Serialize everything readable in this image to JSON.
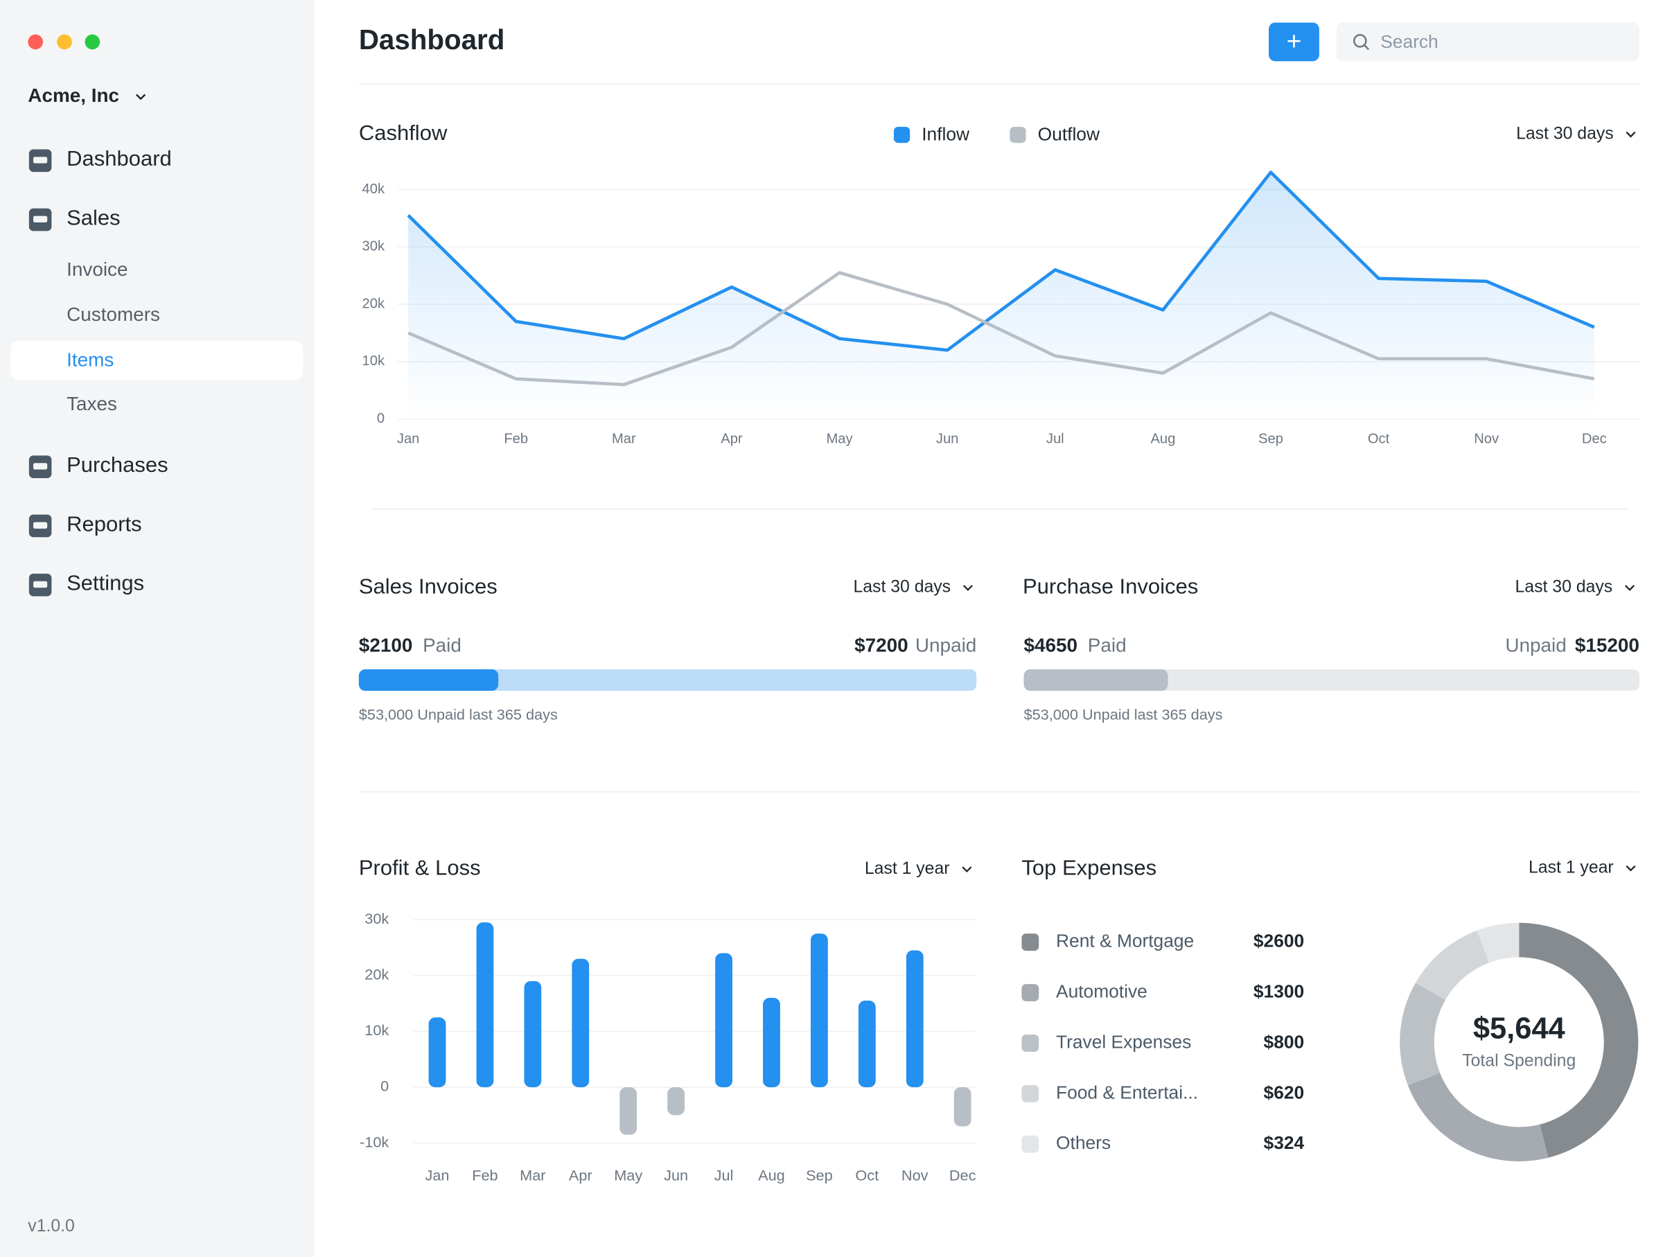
{
  "sidebar": {
    "company": "Acme, Inc",
    "nav": [
      {
        "label": "Dashboard"
      },
      {
        "label": "Sales",
        "children": [
          {
            "label": "Invoice"
          },
          {
            "label": "Customers"
          },
          {
            "label": "Items",
            "active": true
          },
          {
            "label": "Taxes"
          }
        ]
      },
      {
        "label": "Purchases"
      },
      {
        "label": "Reports"
      },
      {
        "label": "Settings"
      }
    ],
    "version": "v1.0.0"
  },
  "header": {
    "title": "Dashboard",
    "add_button": "+",
    "search_placeholder": "Search"
  },
  "cashflow": {
    "type": "line",
    "title": "Cashflow",
    "period": "Last 30 days",
    "categories": [
      "Jan",
      "Feb",
      "Mar",
      "Apr",
      "May",
      "Jun",
      "Jul",
      "Aug",
      "Sep",
      "Oct",
      "Nov",
      "Dec"
    ],
    "series": [
      {
        "name": "Inflow",
        "color": "#2490ef",
        "values": [
          35500,
          17000,
          14000,
          23000,
          14000,
          12000,
          26000,
          19000,
          43000,
          24500,
          24000,
          16000
        ]
      },
      {
        "name": "Outflow",
        "color": "#b7bec5",
        "values": [
          15000,
          7000,
          6000,
          12500,
          25500,
          20000,
          11000,
          8000,
          18500,
          10500,
          10500,
          7000
        ]
      }
    ],
    "ylim": [
      0,
      44000
    ],
    "yticks": [
      0,
      {
        "value": 10000,
        "label": "10k"
      },
      {
        "value": 20000,
        "label": "20k"
      },
      {
        "value": 30000,
        "label": "30k"
      },
      {
        "value": 40000,
        "label": "40k"
      }
    ],
    "grid": true
  },
  "sales_invoices": {
    "title": "Sales Invoices",
    "period": "Last 30 days",
    "paid": {
      "value": 2100,
      "label": "$2100"
    },
    "paid_text": "Paid",
    "unpaid": {
      "value": 7200,
      "label": "$7200"
    },
    "unpaid_text": "Unpaid",
    "colors": [
      "#2490ef",
      "#bddcf8"
    ],
    "note": "$53,000 Unpaid last 365 days"
  },
  "purchase_invoices": {
    "title": "Purchase Invoices",
    "period": "Last 30 days",
    "paid": {
      "value": 4650,
      "label": "$4650"
    },
    "paid_text": "Paid",
    "unpaid": {
      "value": 15200,
      "label": "$15200"
    },
    "unpaid_text": "Unpaid",
    "colors": [
      "#b7bec5",
      "#e8e9ea"
    ],
    "note": "$53,000 Unpaid last 365 days"
  },
  "profit_loss": {
    "type": "bar",
    "title": "Profit & Loss",
    "period": "Last 1 year",
    "categories": [
      "Jan",
      "Feb",
      "Mar",
      "Apr",
      "May",
      "Jun",
      "Jul",
      "Aug",
      "Sep",
      "Oct",
      "Nov",
      "Dec"
    ],
    "values": [
      12500,
      29500,
      19000,
      23000,
      -8500,
      -5000,
      24000,
      16000,
      27500,
      15500,
      24500,
      -7000
    ],
    "color": "#2490ef",
    "negative_color": "#b7bec5",
    "ylim": [
      -10000,
      30000
    ],
    "yticks": [
      {
        "value": -10000,
        "label": "-10k"
      },
      0,
      {
        "value": 10000,
        "label": "10k"
      },
      {
        "value": 20000,
        "label": "20k"
      },
      {
        "value": 30000,
        "label": "30k"
      }
    ],
    "grid": true
  },
  "top_expenses": {
    "type": "pie",
    "title": "Top Expenses",
    "period": "Last 1 year",
    "categories": [
      "Rent & Mortgage",
      "Automotive",
      "Travel Expenses",
      "Food & Entertai...",
      "Others"
    ],
    "values": [
      2600,
      1300,
      800,
      620,
      324
    ],
    "value_labels": [
      "$2600",
      "$1300",
      "$800",
      "$620",
      "$324"
    ],
    "colors": [
      "#858b8f",
      "#a5abb0",
      "#bcc1c5",
      "#d3d6d9",
      "#e4e5e7"
    ],
    "total": {
      "value": 5644,
      "label": "$5,644"
    },
    "total_text": "Total Spending"
  }
}
